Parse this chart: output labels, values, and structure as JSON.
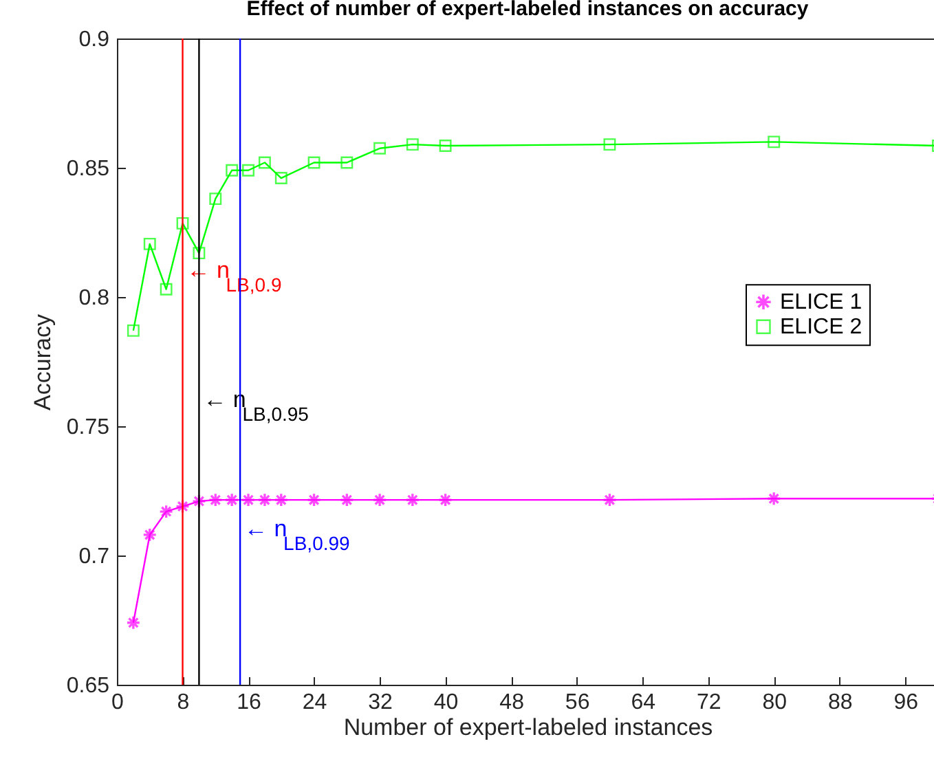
{
  "chart_data": {
    "type": "line",
    "title": "Effect of number of expert-labeled instances on accuracy",
    "xlabel": "Number of expert-labeled instances",
    "ylabel": "Accuracy",
    "x": [
      2,
      4,
      6,
      8,
      10,
      12,
      14,
      16,
      18,
      20,
      24,
      28,
      32,
      36,
      40,
      60,
      80,
      100
    ],
    "series": [
      {
        "name": "ELICE 1",
        "color": "#ff00ff",
        "marker": "star",
        "values": [
          0.674,
          0.708,
          0.717,
          0.719,
          0.721,
          0.7215,
          0.7215,
          0.7215,
          0.7215,
          0.7215,
          0.7215,
          0.7215,
          0.7215,
          0.7215,
          0.7215,
          0.7215,
          0.722,
          0.722
        ]
      },
      {
        "name": "ELICE 2",
        "color": "#00ff00",
        "marker": "square",
        "values": [
          0.787,
          0.8205,
          0.803,
          0.8285,
          0.817,
          0.838,
          0.849,
          0.849,
          0.852,
          0.846,
          0.852,
          0.852,
          0.8575,
          0.859,
          0.8585,
          0.859,
          0.86,
          0.8585
        ]
      }
    ],
    "xlim": [
      0,
      100
    ],
    "xticks": [
      0,
      8,
      16,
      24,
      32,
      40,
      48,
      56,
      64,
      72,
      80,
      88,
      96
    ],
    "ylim": [
      0.65,
      0.9
    ],
    "yticks": [
      0.65,
      0.7,
      0.75,
      0.8,
      0.85,
      0.9
    ],
    "ref_lines": [
      {
        "axis": "x",
        "value": 8,
        "label": "← n$_{LB,0.9}$",
        "color": "#ff0000"
      },
      {
        "axis": "x",
        "value": 10,
        "label": "← n$_{LB,0.95}$",
        "color": "#000000"
      },
      {
        "axis": "x",
        "value": 15,
        "label": "← n$_{LB,0.99}$",
        "color": "#0000ff"
      }
    ],
    "grid": false,
    "legend": "right"
  }
}
